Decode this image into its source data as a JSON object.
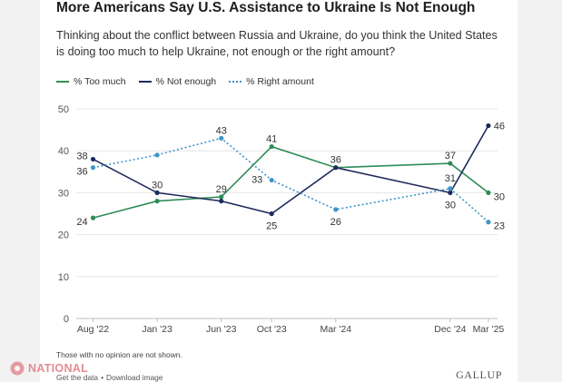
{
  "header": {
    "title": "More Americans Say U.S. Assistance to Ukraine Is Not Enough",
    "subtitle": "Thinking about the conflict between Russia and Ukraine, do you think the United States is doing too much to help Ukraine, not enough or the right amount?"
  },
  "legend": {
    "too_much": "% Too much",
    "not_enough": "% Not enough",
    "right_amount": "% Right amount"
  },
  "chart_data": {
    "type": "line",
    "x": [
      "Aug '22",
      "Jan '23",
      "Jun '23",
      "Oct '23",
      "Mar '24",
      "Dec '24",
      "Mar '25"
    ],
    "x_pos": [
      2022.58,
      2023.0,
      2023.42,
      2023.75,
      2024.17,
      2024.92,
      2025.17
    ],
    "ylim": [
      0,
      50
    ],
    "yticks": [
      0,
      10,
      20,
      30,
      40,
      50
    ],
    "grid": true,
    "series": [
      {
        "name": "% Too much",
        "color": "#2e8b57",
        "dashed": false,
        "values": [
          24,
          28,
          29,
          41,
          36,
          37,
          30
        ],
        "labels": [
          "24",
          "",
          "29",
          "41",
          "",
          "37",
          "30"
        ]
      },
      {
        "name": "% Not enough",
        "color": "#1f2a5c",
        "dashed": false,
        "values": [
          38,
          30,
          28,
          25,
          36,
          30,
          46
        ],
        "labels": [
          "38",
          "30",
          "",
          "25",
          "36",
          "30",
          "46"
        ]
      },
      {
        "name": "% Right amount",
        "color": "#3e95c8",
        "dashed": true,
        "values": [
          36,
          39,
          43,
          33,
          26,
          31,
          23
        ],
        "labels": [
          "36",
          "",
          "43",
          "33",
          "26",
          "31",
          "23"
        ]
      }
    ]
  },
  "footer": {
    "note": "Those with no opinion are not shown.",
    "get_data": "Get the data",
    "separator": "•",
    "download": "Download image",
    "brand": "GALLUP"
  },
  "watermark": {
    "text": "NATIONAL"
  }
}
